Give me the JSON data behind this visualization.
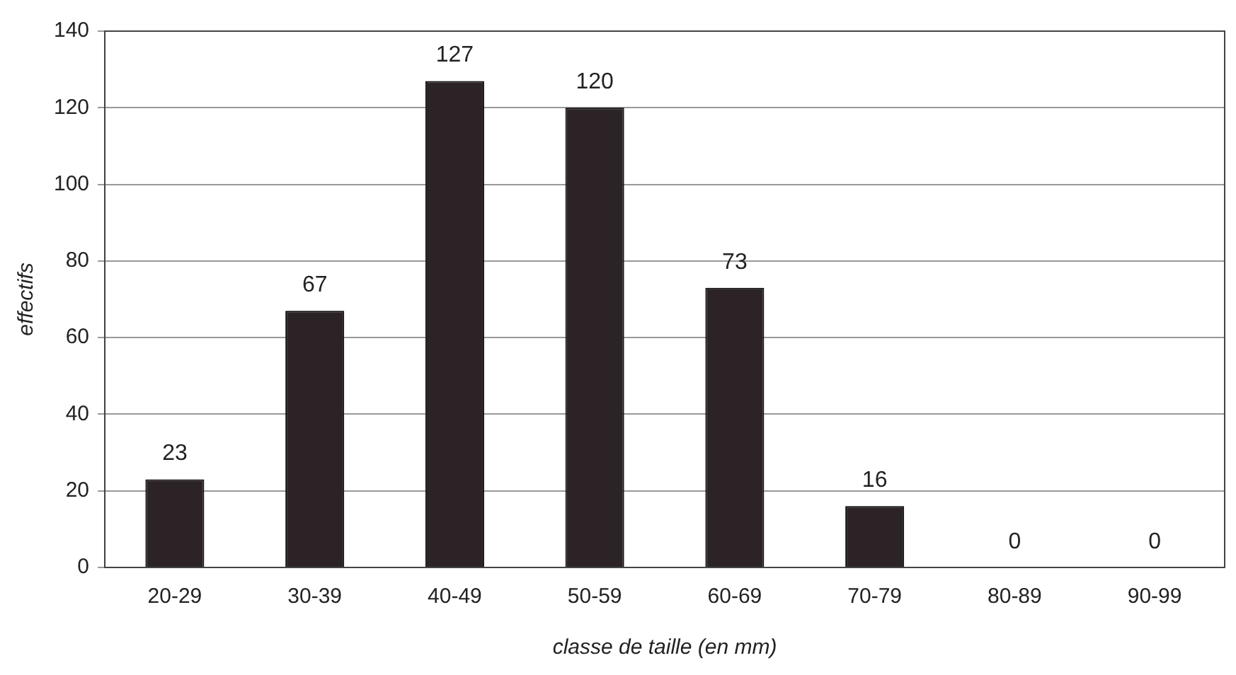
{
  "chart_data": {
    "type": "bar",
    "xlabel": "classe de taille (en mm)",
    "ylabel": "effectifs",
    "categories": [
      "20-29",
      "30-39",
      "40-49",
      "50-59",
      "60-69",
      "70-79",
      "80-89",
      "90-99"
    ],
    "values": [
      23,
      67,
      127,
      120,
      73,
      16,
      0,
      0
    ],
    "color": "#2b2326",
    "ylim": [
      0,
      140
    ],
    "yticks": [
      0,
      20,
      40,
      60,
      80,
      100,
      120,
      140
    ],
    "grid": "y",
    "data_labels": true,
    "legend": false
  }
}
